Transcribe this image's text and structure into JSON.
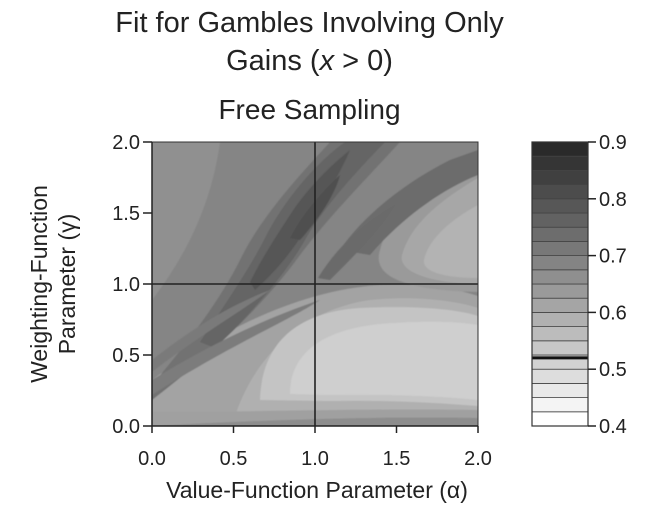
{
  "figure": {
    "title_line1": "Fit for Gambles Involving Only",
    "title_line2_prefix": "Gains (",
    "title_line2_var": "x",
    "title_line2_suffix": " > 0)",
    "subtitle": "Free Sampling"
  },
  "chart_data": {
    "type": "heatmap",
    "title": "Fit for Gambles Involving Only Gains (x > 0)",
    "subtitle": "Free Sampling",
    "xlabel": "Value-Function Parameter (α)",
    "ylabel_line1": "Weighting-Function",
    "ylabel_line2": "Parameter (γ)",
    "xlim": [
      0.0,
      2.0
    ],
    "ylim": [
      0.0,
      2.0
    ],
    "x_ticks": [
      "0.0",
      "0.5",
      "1.0",
      "1.5",
      "2.0"
    ],
    "y_ticks": [
      "0.0",
      "0.5",
      "1.0",
      "1.5",
      "2.0"
    ],
    "reference_lines": {
      "x": 1.0,
      "y": 1.0
    },
    "colorbar": {
      "min": 0.4,
      "max": 0.9,
      "ticks": [
        "0.4",
        "0.5",
        "0.6",
        "0.7",
        "0.8",
        "0.9"
      ],
      "levels": 20,
      "highlight_level": 0.52
    }
  }
}
